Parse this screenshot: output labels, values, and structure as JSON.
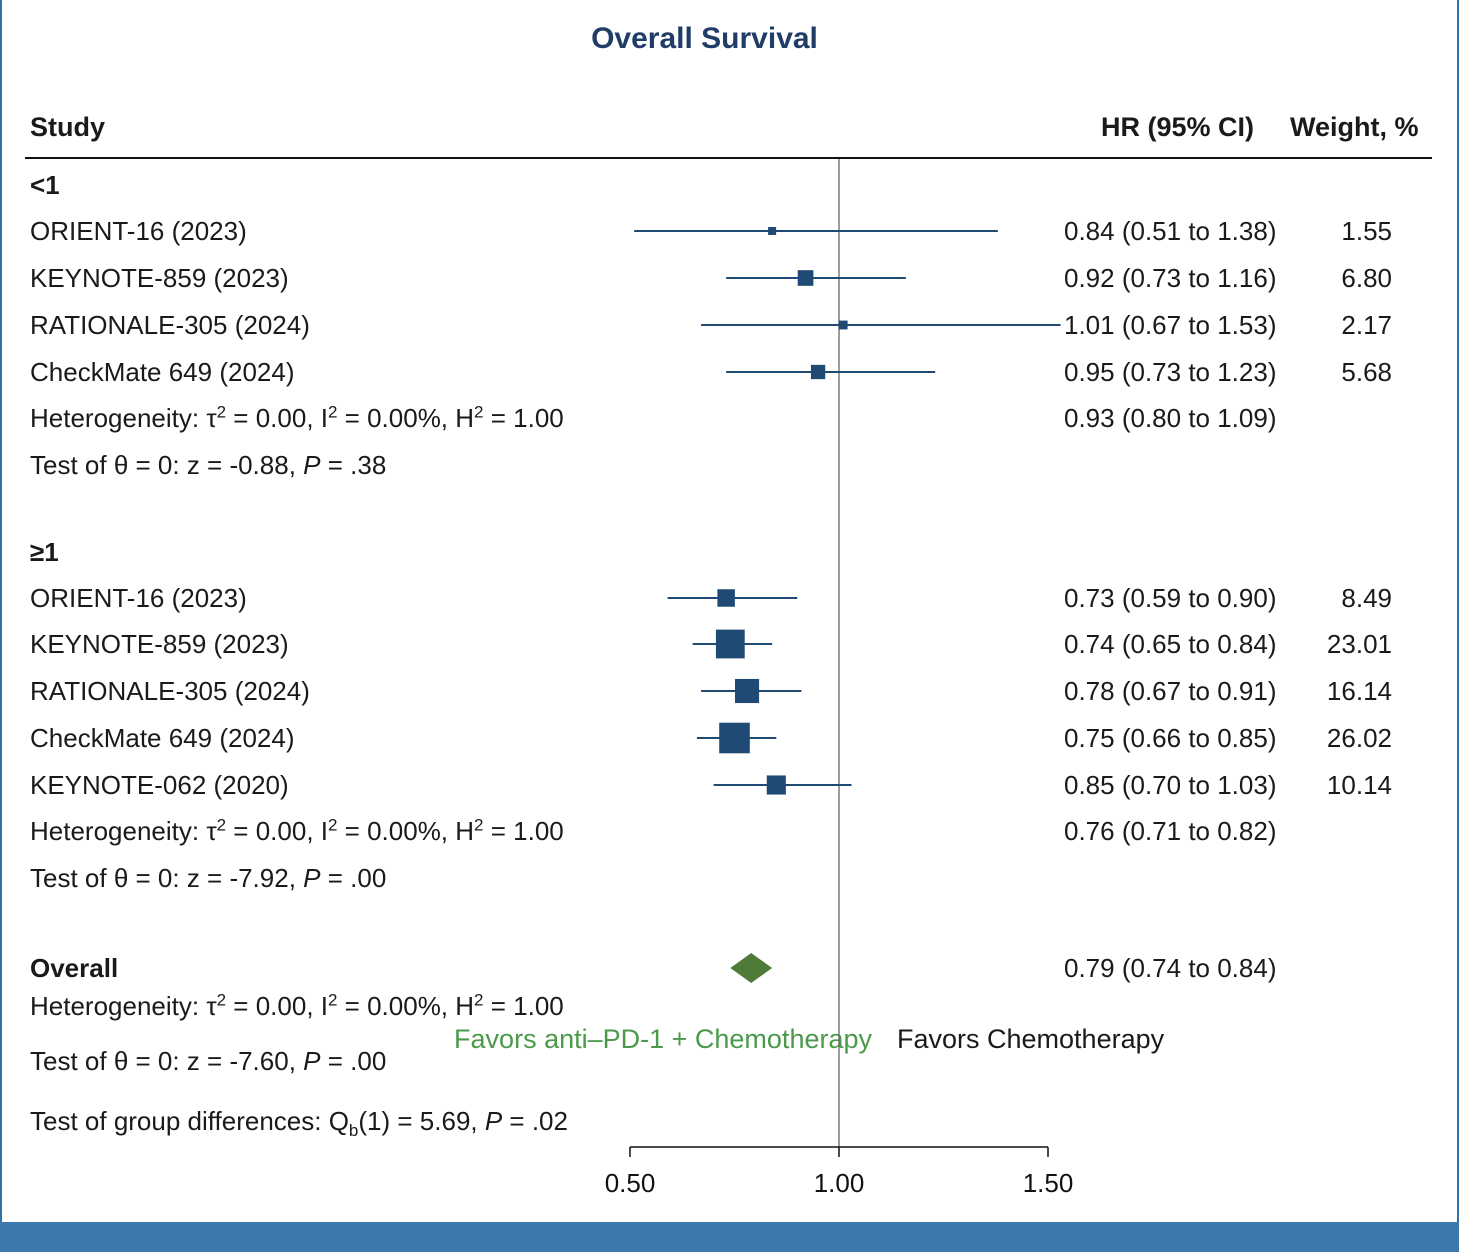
{
  "title": "Overall Survival",
  "headers": {
    "study": "Study",
    "hr": "HR (95% CI)",
    "weight": "Weight, %"
  },
  "colors": {
    "marker": "#1f4a73",
    "overall_diamond": "#4f7a37",
    "favor_left": "#4a9a4a",
    "title": "#1f3d66",
    "frame": "#2e73b0"
  },
  "groups": [
    {
      "label": "<1",
      "studies": [
        {
          "name": "ORIENT-16 (2023)",
          "hr": 0.84,
          "lo": 0.51,
          "hi": 1.38,
          "hr_text": "0.84 (0.51 to 1.38)",
          "weight": 1.55,
          "weight_text": "1.55"
        },
        {
          "name": "KEYNOTE-859 (2023)",
          "hr": 0.92,
          "lo": 0.73,
          "hi": 1.16,
          "hr_text": "0.92 (0.73 to 1.16)",
          "weight": 6.8,
          "weight_text": "6.80"
        },
        {
          "name": "RATIONALE-305 (2024)",
          "hr": 1.01,
          "lo": 0.67,
          "hi": 1.53,
          "hr_text": "1.01 (0.67 to 1.53)",
          "weight": 2.17,
          "weight_text": "2.17"
        },
        {
          "name": "CheckMate 649 (2024)",
          "hr": 0.95,
          "lo": 0.73,
          "hi": 1.23,
          "hr_text": "0.95 (0.73 to 1.23)",
          "weight": 5.68,
          "weight_text": "5.68"
        }
      ],
      "heterogeneity": {
        "prefix": "Heterogeneity: τ",
        "sup1": "2",
        "mid1": " = 0.00, I",
        "sup2": "2",
        "mid2": " = 0.00%, H",
        "sup3": "2",
        "end": " = 1.00"
      },
      "pooled_text": "0.93 (0.80 to 1.09)",
      "test": {
        "prefix": "Test of θ = 0: z = -0.88, ",
        "p_label": "P",
        "p_value": " = .38"
      }
    },
    {
      "label": "≥1",
      "studies": [
        {
          "name": "ORIENT-16 (2023)",
          "hr": 0.73,
          "lo": 0.59,
          "hi": 0.9,
          "hr_text": "0.73 (0.59 to 0.90)",
          "weight": 8.49,
          "weight_text": "8.49"
        },
        {
          "name": "KEYNOTE-859 (2023)",
          "hr": 0.74,
          "lo": 0.65,
          "hi": 0.84,
          "hr_text": "0.74 (0.65 to 0.84)",
          "weight": 23.01,
          "weight_text": "23.01"
        },
        {
          "name": "RATIONALE-305 (2024)",
          "hr": 0.78,
          "lo": 0.67,
          "hi": 0.91,
          "hr_text": "0.78 (0.67 to 0.91)",
          "weight": 16.14,
          "weight_text": "16.14"
        },
        {
          "name": "CheckMate 649 (2024)",
          "hr": 0.75,
          "lo": 0.66,
          "hi": 0.85,
          "hr_text": "0.75 (0.66 to 0.85)",
          "weight": 26.02,
          "weight_text": "26.02"
        },
        {
          "name": "KEYNOTE-062 (2020)",
          "hr": 0.85,
          "lo": 0.7,
          "hi": 1.03,
          "hr_text": "0.85 (0.70 to 1.03)",
          "weight": 10.14,
          "weight_text": "10.14"
        }
      ],
      "heterogeneity": {
        "prefix": "Heterogeneity: τ",
        "sup1": "2",
        "mid1": " = 0.00, I",
        "sup2": "2",
        "mid2": " = 0.00%, H",
        "sup3": "2",
        "end": " = 1.00"
      },
      "pooled_text": "0.76 (0.71 to 0.82)",
      "test": {
        "prefix": "Test of θ = 0: z = -7.92, ",
        "p_label": "P",
        "p_value": " = .00"
      }
    }
  ],
  "overall": {
    "label": "Overall",
    "hr": 0.79,
    "lo": 0.74,
    "hi": 0.84,
    "hr_text": "0.79 (0.74 to 0.84)",
    "heterogeneity": {
      "prefix": "Heterogeneity: τ",
      "sup1": "2",
      "mid1": " = 0.00, I",
      "sup2": "2",
      "mid2": " = 0.00%, H",
      "sup3": "2",
      "end": " = 1.00"
    },
    "test": {
      "prefix": "Test of θ = 0: z = -7.60, ",
      "p_label": "P",
      "p_value": " = .00"
    }
  },
  "group_diff": {
    "prefix": "Test of group differences: Q",
    "sub": "b",
    "mid": "(1) = 5.69, ",
    "p_label": "P",
    "p_value": " = .02"
  },
  "favors": {
    "left": "Favors anti–PD-1 + Chemotherapy",
    "right": "Favors Chemotherapy"
  },
  "chart_data": {
    "type": "forest",
    "title": "Overall Survival",
    "x_scale": "linear",
    "xlim": [
      0.5,
      1.5
    ],
    "xticks": [
      0.5,
      1.0,
      1.5
    ],
    "xtick_labels": [
      "0.50",
      "1.00",
      "1.50"
    ],
    "reference_line": 1.0
  }
}
